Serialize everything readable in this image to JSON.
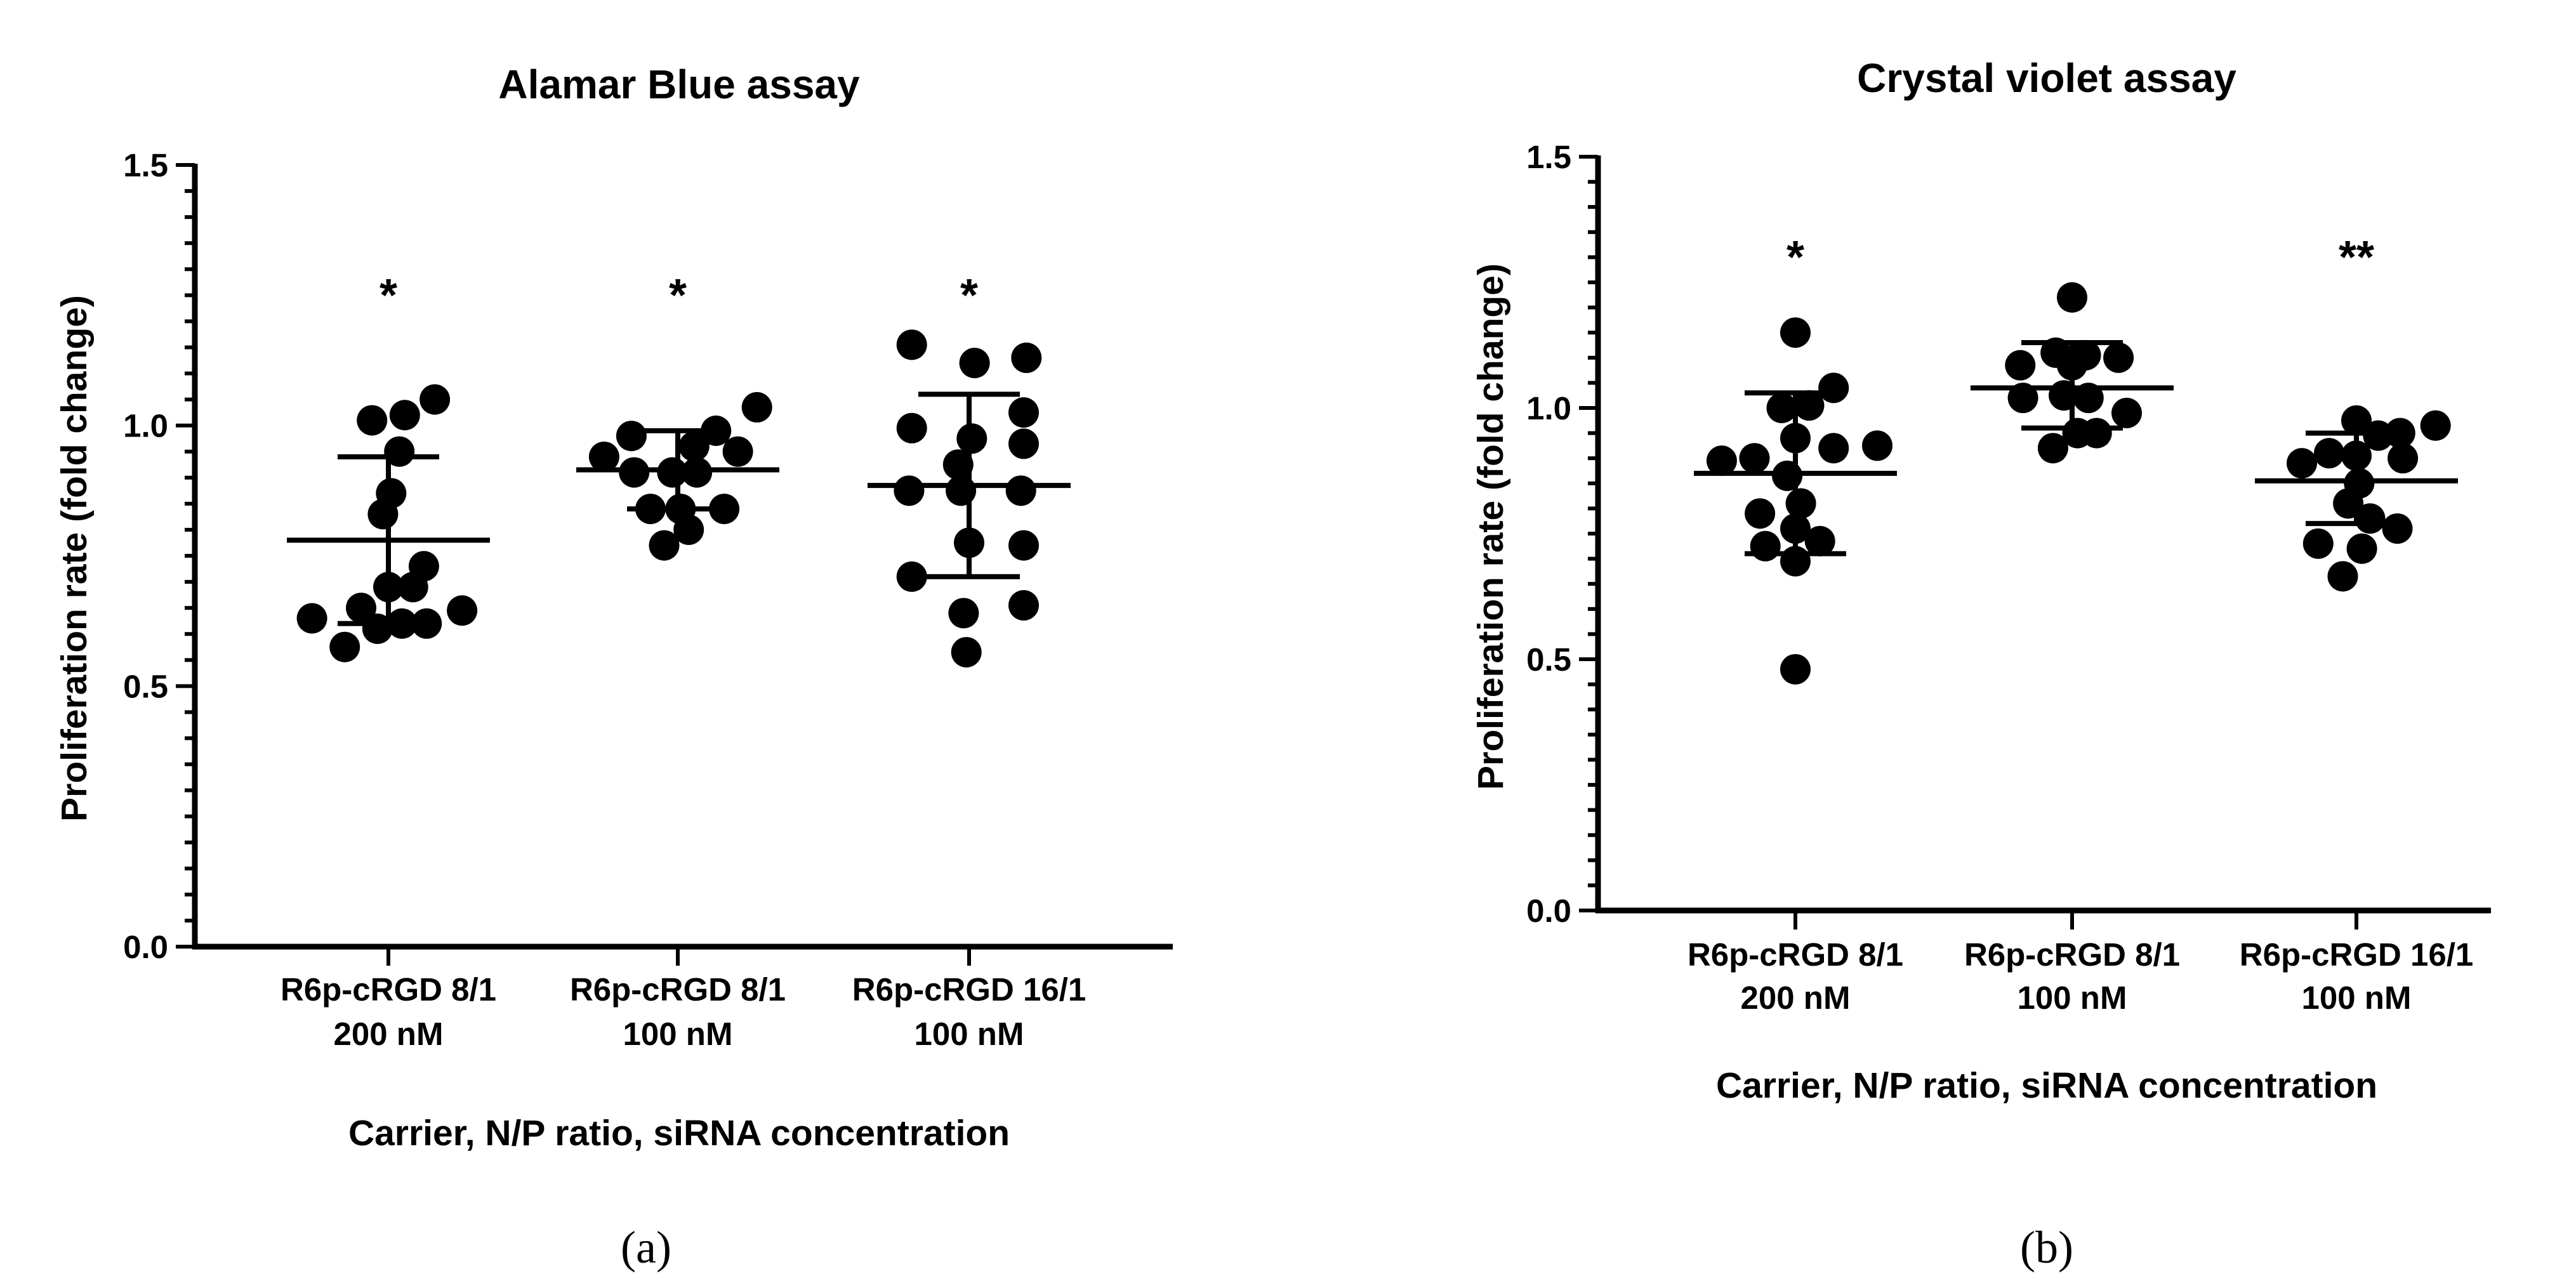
{
  "figure": {
    "panel_labels": [
      "(a)",
      "(b)"
    ]
  },
  "chart_data": [
    {
      "type": "scatter",
      "title": "Alamar Blue assay",
      "xlabel": "Carrier, N/P ratio, siRNA concentration",
      "ylabel": "Proliferation rate (fold change)",
      "ylim": [
        0,
        1.5
      ],
      "yticks": [
        "0.0",
        "0.5",
        "1.0",
        "1.5"
      ],
      "grid": false,
      "categories": [
        {
          "line1": "R6p-cRGD 8/1",
          "line2": "200 nM"
        },
        {
          "line1": "R6p-cRGD 8/1",
          "line2": "100 nM"
        },
        {
          "line1": "R6p-cRGD 16/1",
          "line2": "100 nM"
        }
      ],
      "significance": [
        "*",
        "*",
        "*"
      ],
      "groups": [
        {
          "mean": 0.78,
          "sd_low": 0.62,
          "sd_high": 0.94,
          "points": [
            {
              "offset": -0.28,
              "y": 0.63
            },
            {
              "offset": -0.16,
              "y": 0.575
            },
            {
              "offset": -0.1,
              "y": 0.65
            },
            {
              "offset": -0.06,
              "y": 1.01
            },
            {
              "offset": -0.02,
              "y": 0.83
            },
            {
              "offset": -0.04,
              "y": 0.61
            },
            {
              "offset": 0.0,
              "y": 0.69
            },
            {
              "offset": 0.01,
              "y": 0.87
            },
            {
              "offset": 0.04,
              "y": 0.95
            },
            {
              "offset": 0.05,
              "y": 0.62
            },
            {
              "offset": 0.06,
              "y": 1.02
            },
            {
              "offset": 0.09,
              "y": 0.69
            },
            {
              "offset": 0.13,
              "y": 0.73
            },
            {
              "offset": 0.14,
              "y": 0.62
            },
            {
              "offset": 0.17,
              "y": 1.05
            },
            {
              "offset": 0.27,
              "y": 0.645
            }
          ]
        },
        {
          "mean": 0.915,
          "sd_low": 0.84,
          "sd_high": 0.99,
          "points": [
            {
              "offset": -0.27,
              "y": 0.94
            },
            {
              "offset": -0.16,
              "y": 0.91
            },
            {
              "offset": -0.17,
              "y": 0.98
            },
            {
              "offset": -0.1,
              "y": 0.84
            },
            {
              "offset": -0.05,
              "y": 0.77
            },
            {
              "offset": -0.02,
              "y": 0.91
            },
            {
              "offset": 0.01,
              "y": 0.84
            },
            {
              "offset": 0.04,
              "y": 0.8
            },
            {
              "offset": 0.06,
              "y": 0.96
            },
            {
              "offset": 0.07,
              "y": 0.91
            },
            {
              "offset": 0.14,
              "y": 0.99
            },
            {
              "offset": 0.17,
              "y": 0.84
            },
            {
              "offset": 0.22,
              "y": 0.95
            },
            {
              "offset": 0.29,
              "y": 1.035
            }
          ]
        },
        {
          "mean": 0.885,
          "sd_low": 0.71,
          "sd_high": 1.06,
          "points": [
            {
              "offset": -0.21,
              "y": 1.155
            },
            {
              "offset": -0.21,
              "y": 0.995
            },
            {
              "offset": -0.21,
              "y": 0.71
            },
            {
              "offset": -0.22,
              "y": 0.875
            },
            {
              "offset": -0.02,
              "y": 0.64
            },
            {
              "offset": -0.03,
              "y": 0.875
            },
            {
              "offset": -0.04,
              "y": 0.925
            },
            {
              "offset": -0.01,
              "y": 0.565
            },
            {
              "offset": 0.0,
              "y": 0.775
            },
            {
              "offset": 0.01,
              "y": 0.975
            },
            {
              "offset": 0.02,
              "y": 1.12
            },
            {
              "offset": 0.19,
              "y": 0.875
            },
            {
              "offset": 0.2,
              "y": 1.025
            },
            {
              "offset": 0.2,
              "y": 0.965
            },
            {
              "offset": 0.2,
              "y": 0.77
            },
            {
              "offset": 0.2,
              "y": 0.655
            },
            {
              "offset": 0.21,
              "y": 1.13
            }
          ]
        }
      ]
    },
    {
      "type": "scatter",
      "title": "Crystal violet assay",
      "xlabel": "Carrier, N/P ratio, siRNA concentration",
      "ylabel": "Proliferation rate (fold change)",
      "ylim": [
        0,
        1.5
      ],
      "yticks": [
        "0.0",
        "0.5",
        "1.0",
        "1.5"
      ],
      "grid": false,
      "categories": [
        {
          "line1": "R6p-cRGD 8/1",
          "line2": "200 nM"
        },
        {
          "line1": "R6p-cRGD 8/1",
          "line2": "100 nM"
        },
        {
          "line1": "R6p-cRGD 16/1",
          "line2": "100 nM"
        }
      ],
      "significance": [
        "*",
        "",
        "**"
      ],
      "groups": [
        {
          "mean": 0.87,
          "sd_low": 0.71,
          "sd_high": 1.03,
          "points": [
            {
              "offset": -0.27,
              "y": 0.895
            },
            {
              "offset": -0.15,
              "y": 0.9
            },
            {
              "offset": -0.13,
              "y": 0.79
            },
            {
              "offset": -0.11,
              "y": 0.725
            },
            {
              "offset": -0.05,
              "y": 1.0
            },
            {
              "offset": -0.03,
              "y": 0.865
            },
            {
              "offset": 0.0,
              "y": 0.48
            },
            {
              "offset": 0.0,
              "y": 1.15
            },
            {
              "offset": 0.0,
              "y": 0.94
            },
            {
              "offset": 0.0,
              "y": 0.76
            },
            {
              "offset": 0.0,
              "y": 0.695
            },
            {
              "offset": 0.02,
              "y": 0.81
            },
            {
              "offset": 0.05,
              "y": 1.005
            },
            {
              "offset": 0.09,
              "y": 0.735
            },
            {
              "offset": 0.14,
              "y": 1.04
            },
            {
              "offset": 0.14,
              "y": 0.92
            },
            {
              "offset": 0.3,
              "y": 0.925
            }
          ]
        },
        {
          "mean": 1.04,
          "sd_low": 0.96,
          "sd_high": 1.13,
          "points": [
            {
              "offset": -0.19,
              "y": 1.085
            },
            {
              "offset": -0.18,
              "y": 1.02
            },
            {
              "offset": -0.07,
              "y": 0.92
            },
            {
              "offset": -0.06,
              "y": 1.11
            },
            {
              "offset": -0.03,
              "y": 1.025
            },
            {
              "offset": 0.0,
              "y": 1.22
            },
            {
              "offset": 0.0,
              "y": 1.085
            },
            {
              "offset": 0.02,
              "y": 0.95
            },
            {
              "offset": 0.05,
              "y": 1.105
            },
            {
              "offset": 0.06,
              "y": 1.02
            },
            {
              "offset": 0.09,
              "y": 0.95
            },
            {
              "offset": 0.17,
              "y": 1.1
            },
            {
              "offset": 0.2,
              "y": 0.99
            }
          ]
        },
        {
          "mean": 0.855,
          "sd_low": 0.77,
          "sd_high": 0.95,
          "points": [
            {
              "offset": -0.2,
              "y": 0.89
            },
            {
              "offset": -0.14,
              "y": 0.73
            },
            {
              "offset": -0.1,
              "y": 0.91
            },
            {
              "offset": -0.05,
              "y": 0.665
            },
            {
              "offset": -0.03,
              "y": 0.81
            },
            {
              "offset": 0.0,
              "y": 0.975
            },
            {
              "offset": 0.0,
              "y": 0.905
            },
            {
              "offset": 0.01,
              "y": 0.85
            },
            {
              "offset": 0.02,
              "y": 0.72
            },
            {
              "offset": 0.05,
              "y": 0.78
            },
            {
              "offset": 0.08,
              "y": 0.945
            },
            {
              "offset": 0.15,
              "y": 0.76
            },
            {
              "offset": 0.16,
              "y": 0.95
            },
            {
              "offset": 0.17,
              "y": 0.9
            },
            {
              "offset": 0.29,
              "y": 0.965
            }
          ]
        }
      ]
    }
  ]
}
